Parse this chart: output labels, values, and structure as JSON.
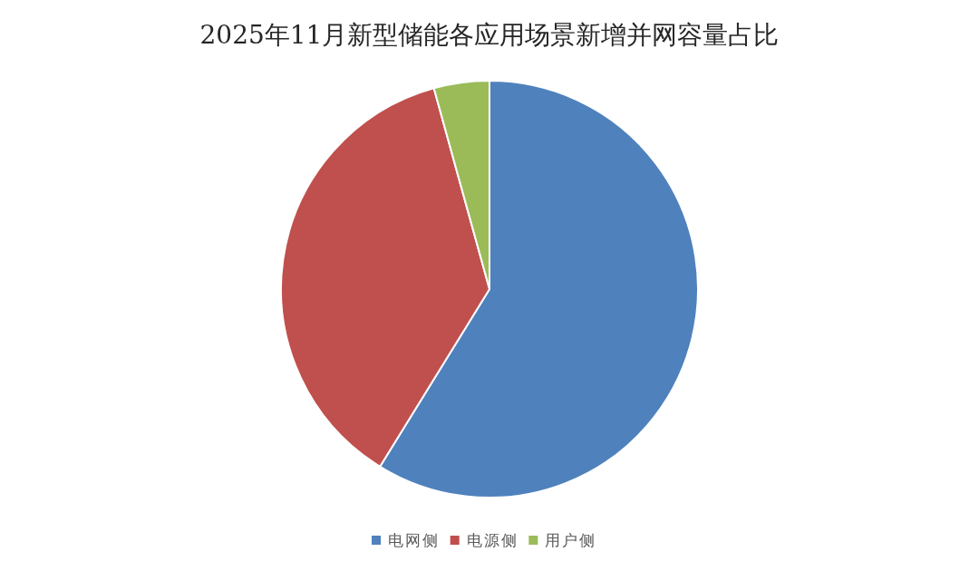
{
  "chart_data": {
    "type": "pie",
    "title": "2025年11月新型储能各应用场景新增并网容量占比",
    "categories": [
      "电网侧",
      "电源侧",
      "用户侧"
    ],
    "values": [
      58.8,
      36.9,
      4.3
    ],
    "colors": [
      "#4f81bd",
      "#c0504d",
      "#9bbb59"
    ],
    "legend": "bottom"
  }
}
